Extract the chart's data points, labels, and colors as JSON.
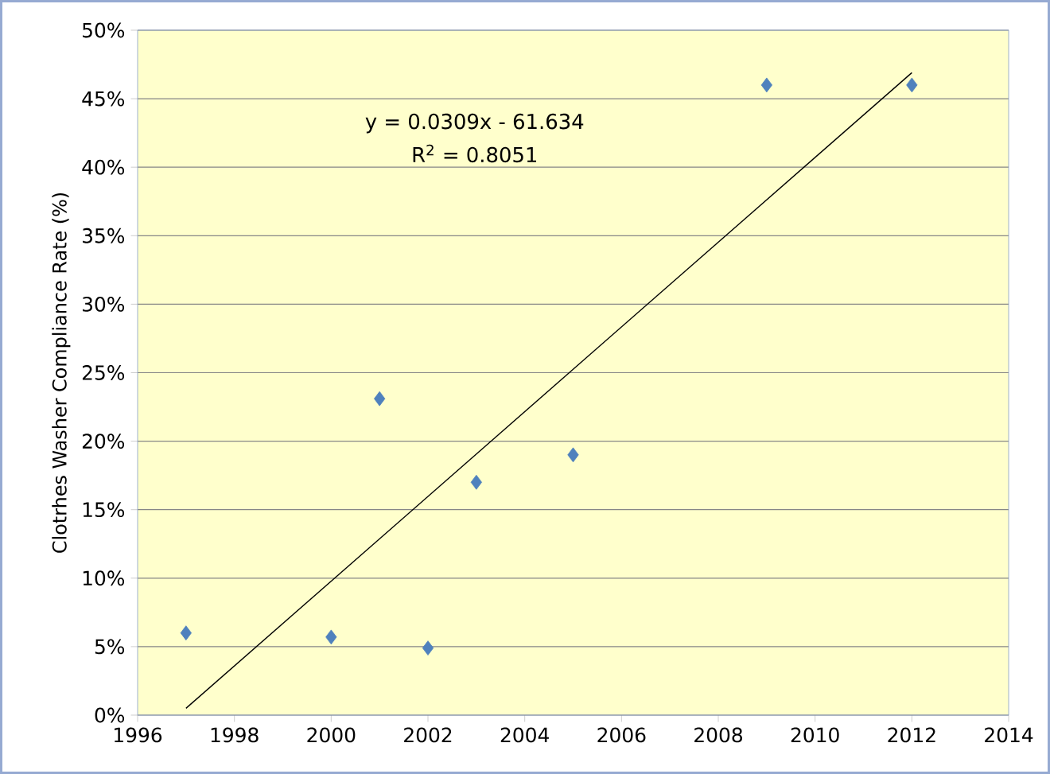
{
  "chart_data": {
    "type": "scatter",
    "ylabel": "Clotrhes Washer Compliance Rate (%)",
    "annotations": [
      "y = 0.0309x - 61.634",
      "R$^{2}$ = 0.8051"
    ],
    "series": [
      {
        "marker": "diamond",
        "color": "#4f81bd",
        "x": [
          1997,
          2000,
          2001,
          2002,
          2003,
          2005,
          2009,
          2012
        ],
        "values": [
          6.0,
          5.7,
          23.1,
          4.9,
          17.0,
          19.0,
          46.0,
          46.0
        ]
      },
      {
        "type": "line",
        "marker": "none",
        "color": "#000000",
        "x": [
          1997,
          2012
        ],
        "values": [
          0.5,
          46.9
        ]
      }
    ],
    "grid": "y",
    "xlim": [
      1996,
      2014
    ],
    "xticks": [
      1996,
      1998,
      2000,
      2002,
      2004,
      2006,
      2008,
      2010,
      2012,
      2014
    ],
    "ylim": [
      0,
      50
    ],
    "yticks": [
      {
        "value": 0,
        "label": "0%"
      },
      {
        "value": 5,
        "label": "5%"
      },
      {
        "value": 10,
        "label": "10%"
      },
      {
        "value": 15,
        "label": "15%"
      },
      {
        "value": 20,
        "label": "20%"
      },
      {
        "value": 25,
        "label": "25%"
      },
      {
        "value": 30,
        "label": "30%"
      },
      {
        "value": 35,
        "label": "35%"
      },
      {
        "value": 40,
        "label": "40%"
      },
      {
        "value": 45,
        "label": "45%"
      },
      {
        "value": 50,
        "label": "50%"
      }
    ]
  }
}
